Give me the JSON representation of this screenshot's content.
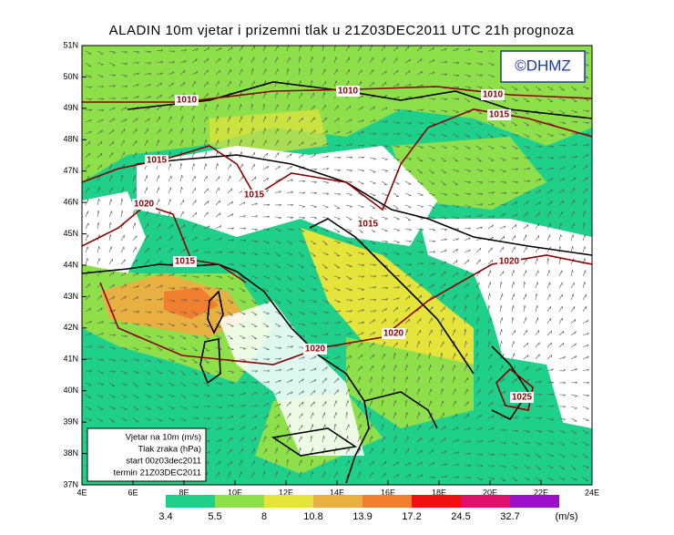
{
  "title": "ALADIN 10m vjetar i prizemni tlak u 21Z03DEC2011 UTC 21h prognoza",
  "copyright": "©DHMZ",
  "lat_labels": [
    "51N",
    "50N",
    "49N",
    "48N",
    "47N",
    "46N",
    "45N",
    "44N",
    "43N",
    "42N",
    "41N",
    "40N",
    "39N",
    "38N",
    "37N"
  ],
  "lon_labels": [
    "4E",
    "6E",
    "8E",
    "10E",
    "12E",
    "14E",
    "16E",
    "18E",
    "20E",
    "22E",
    "24E"
  ],
  "isobar_labels": [
    "1010",
    "1010",
    "1010",
    "1015",
    "1015",
    "1015",
    "1015",
    "1015",
    "1020",
    "1020",
    "1020",
    "1020",
    "1025"
  ],
  "info_box": [
    "Vjetar na 10m (m/s)",
    "Tlak zraka (hPa)",
    "start 00z03dec2011",
    "termin 21Z03DEC2011"
  ],
  "legend": {
    "values": [
      3.4,
      5.5,
      8,
      10.8,
      13.9,
      17.2,
      24.5,
      32.7
    ],
    "colors": [
      "#1fd08a",
      "#8ee04a",
      "#e4e43a",
      "#e8b040",
      "#f08030",
      "#f01010",
      "#e0106a",
      "#9b10c8"
    ],
    "unit": "(m/s)"
  }
}
